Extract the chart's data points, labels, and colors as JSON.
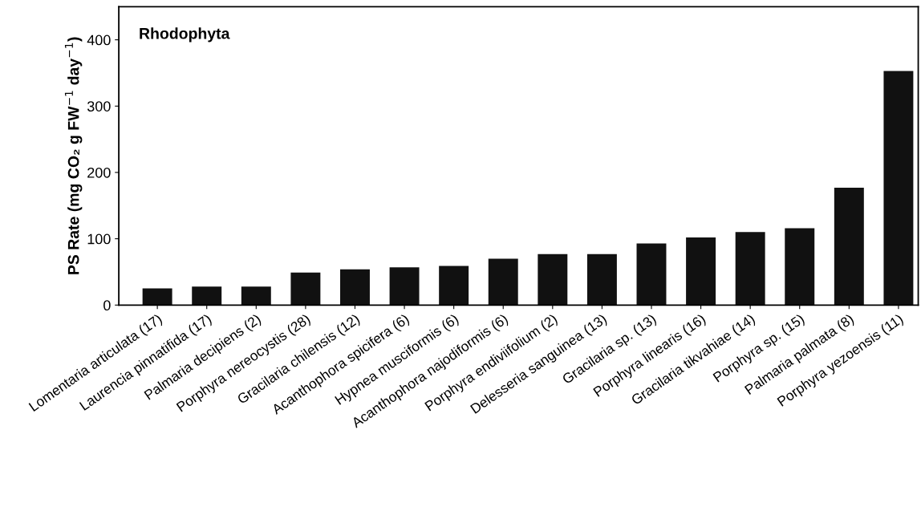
{
  "chart_data": {
    "type": "bar",
    "title": "Rhodophyta",
    "ylabel": "PS Rate (mg CO₂ g FW$^{−1}$ day$^{−1}$)",
    "categories": [
      "Lomentaria articulata (17)",
      "Laurencia pinnatifida (17)",
      "Palmaria decipiens (2)",
      "Porphyra nereocystis (28)",
      "Gracilaria chilensis (12)",
      "Acanthophora spicifera (6)",
      "Hypnea musciformis (6)",
      "Acanthophora najodiformis (6)",
      "Porphyra endiviifolium (2)",
      "Delesseria sanguinea (13)",
      "Gracilaria sp. (13)",
      "Porphyra linearis (16)",
      "Gracilaria tikvahiae (14)",
      "Porphyra sp. (15)",
      "Palmaria palmata (8)",
      "Porphyra yezoensis (11)"
    ],
    "values": [
      25,
      28,
      28,
      49,
      54,
      57,
      59,
      70,
      77,
      77,
      93,
      102,
      110,
      116,
      177,
      353
    ],
    "color": "#111111",
    "ylim": [
      0,
      450
    ],
    "yticks": [
      0,
      100,
      200,
      300,
      400
    ],
    "grid": false
  }
}
